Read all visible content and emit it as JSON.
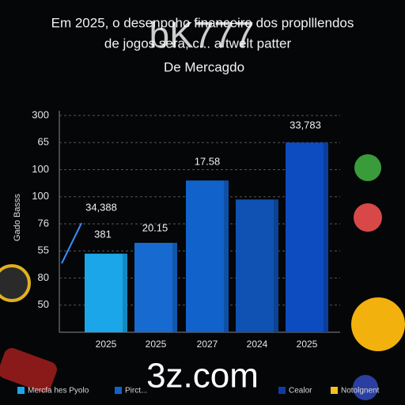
{
  "chart_data": {
    "type": "bar",
    "title": [
      "Em 2025, o desenpoho financeiro dos proplllendos",
      "de jogos sera, c... a twelt patter",
      "De Mercagdo"
    ],
    "ylabel": "Gado Basss",
    "categories": [
      "2025",
      "2025",
      "2027",
      "2024",
      "2025"
    ],
    "values": [
      2.9,
      3.3,
      5.6,
      4.9,
      7.0
    ],
    "colors": [
      "#1ca6ea",
      "#176bd0",
      "#1262cb",
      "#0f52b4",
      "#0d4cc0"
    ],
    "ylim": [
      0,
      8
    ],
    "yticks": [
      {
        "value": 1,
        "label": "50"
      },
      {
        "value": 2,
        "label": "80"
      },
      {
        "value": 3,
        "label": "55"
      },
      {
        "value": 4,
        "label": "76"
      },
      {
        "value": 5,
        "label": "100"
      },
      {
        "value": 6,
        "label": "100"
      },
      {
        "value": 7,
        "label": "65"
      },
      {
        "value": 8,
        "label": "300"
      }
    ],
    "grid": true,
    "annotations": [
      {
        "text": "34,388",
        "color": "#5aa8ff"
      },
      {
        "text": "381",
        "color": "#f0f0f0"
      },
      {
        "text": "20.15",
        "color": "#f0f0f0"
      },
      {
        "text": "17.58",
        "color": "#f0f0f0"
      },
      {
        "text": "33,783",
        "color": "#f0f0f0"
      }
    ],
    "legend": [
      {
        "name": "Mercfa hes Pyolo",
        "color": "#1ca6ea"
      },
      {
        "name": "Pirct...",
        "color": "#1262cb"
      },
      {
        "name": "Cealor",
        "color": "#0f3aa0"
      },
      {
        "name": "Notolgnent",
        "color": "#f4c21a"
      }
    ],
    "watermarks": [
      "bK777",
      "3z.com"
    ]
  }
}
